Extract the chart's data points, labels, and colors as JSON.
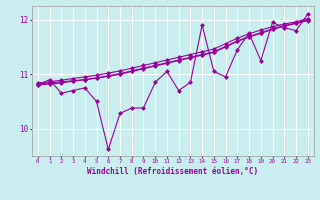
{
  "xlabel": "Windchill (Refroidissement éolien,°C)",
  "x": [
    0,
    1,
    2,
    3,
    4,
    5,
    6,
    7,
    8,
    9,
    10,
    11,
    12,
    13,
    14,
    15,
    16,
    17,
    18,
    19,
    20,
    21,
    22,
    23
  ],
  "y_zigzag": [
    10.8,
    10.9,
    10.65,
    10.7,
    10.75,
    10.5,
    9.62,
    10.28,
    10.38,
    10.38,
    10.85,
    11.05,
    10.7,
    10.85,
    11.9,
    11.05,
    10.95,
    11.45,
    11.75,
    11.25,
    11.95,
    11.85,
    11.8,
    12.1
  ],
  "y_smooth1": [
    10.82,
    10.84,
    10.86,
    10.88,
    10.9,
    10.93,
    10.96,
    11.0,
    11.05,
    11.1,
    11.15,
    11.2,
    11.25,
    11.3,
    11.35,
    11.4,
    11.5,
    11.6,
    11.68,
    11.75,
    11.82,
    11.88,
    11.93,
    11.98
  ],
  "y_smooth2": [
    10.84,
    10.86,
    10.89,
    10.92,
    10.95,
    10.98,
    11.02,
    11.06,
    11.11,
    11.16,
    11.21,
    11.26,
    11.31,
    11.36,
    11.41,
    11.46,
    11.56,
    11.66,
    11.74,
    11.81,
    11.87,
    11.92,
    11.96,
    12.02
  ],
  "y_smooth3": [
    10.8,
    10.82,
    10.84,
    10.87,
    10.9,
    10.93,
    10.97,
    11.01,
    11.06,
    11.11,
    11.16,
    11.21,
    11.26,
    11.31,
    11.36,
    11.41,
    11.51,
    11.61,
    11.69,
    11.76,
    11.83,
    11.89,
    11.94,
    12.0
  ],
  "ylim": [
    9.5,
    12.25
  ],
  "xlim": [
    -0.5,
    23.5
  ],
  "yticks": [
    10,
    11,
    12
  ],
  "bg_color": "#c8eef0",
  "grid_color": "#ffffff",
  "line_color": "#990099",
  "marker_size": 2.5,
  "linewidth": 0.8
}
